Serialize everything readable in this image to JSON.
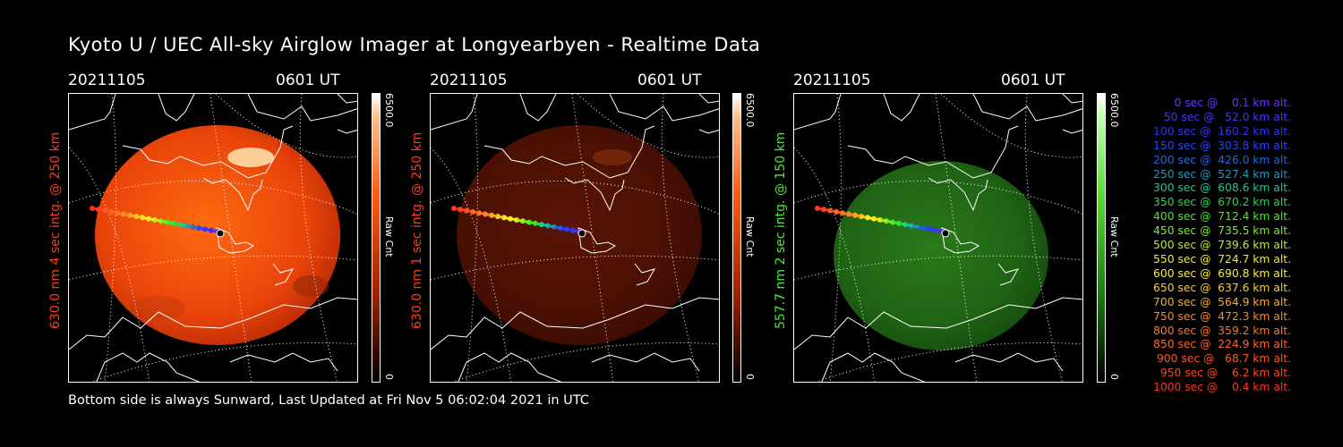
{
  "title": "Kyoto U / UEC All-sky Airglow Imager at Longyearbyen - Realtime Data",
  "footer": "Bottom side is always Sunward, Last Updated at Fri Nov  5 06:02:04 2021 in UTC",
  "panels": [
    {
      "date": "20211105",
      "time": "0601 UT",
      "label": "630.0 nm 4 sec intg. @ 250 km",
      "label_color": "#ff3b1f",
      "cbar_max": "6500.0",
      "cbar_min": "0",
      "cbar_unit": "Raw Cnt",
      "tone": "red-bright"
    },
    {
      "date": "20211105",
      "time": "0601 UT",
      "label": "630.0 nm 1 sec intg. @ 250 km",
      "label_color": "#ff3b1f",
      "cbar_max": "6500.0",
      "cbar_min": "0",
      "cbar_unit": "Raw Cnt",
      "tone": "red-dark"
    },
    {
      "date": "20211105",
      "time": "0601 UT",
      "label": "557.7 nm 2 sec intg. @ 150 km",
      "label_color": "#44ee33",
      "cbar_max": "6500.0",
      "cbar_min": "0",
      "cbar_unit": "Raw Cnt",
      "tone": "green"
    }
  ],
  "legend": [
    {
      "text": "   0 sec @    0.1 km alt.",
      "color": "#6633ff"
    },
    {
      "text": "  50 sec @   52.0 km alt.",
      "color": "#4433ff"
    },
    {
      "text": " 100 sec @  160.2 km alt.",
      "color": "#3333ff"
    },
    {
      "text": " 150 sec @  303.8 km alt.",
      "color": "#2244ff"
    },
    {
      "text": " 200 sec @  426.0 km alt.",
      "color": "#2266dd"
    },
    {
      "text": " 250 sec @  527.4 km alt.",
      "color": "#2299bb"
    },
    {
      "text": " 300 sec @  608.6 km alt.",
      "color": "#11cc99"
    },
    {
      "text": " 350 sec @  670.2 km alt.",
      "color": "#22dd44"
    },
    {
      "text": " 400 sec @  712.4 km alt.",
      "color": "#44ee22"
    },
    {
      "text": " 450 sec @  735.5 km alt.",
      "color": "#77ee22"
    },
    {
      "text": " 500 sec @  739.6 km alt.",
      "color": "#bbee22"
    },
    {
      "text": " 550 sec @  724.7 km alt.",
      "color": "#eeee22"
    },
    {
      "text": " 600 sec @  690.8 km alt.",
      "color": "#ffee22"
    },
    {
      "text": " 650 sec @  637.6 km alt.",
      "color": "#ffcc22"
    },
    {
      "text": " 700 sec @  564.9 km alt.",
      "color": "#ffaa22"
    },
    {
      "text": " 750 sec @  472.3 km alt.",
      "color": "#ff8822"
    },
    {
      "text": " 800 sec @  359.2 km alt.",
      "color": "#ff7722"
    },
    {
      "text": " 850 sec @  224.9 km alt.",
      "color": "#ff6622"
    },
    {
      "text": " 900 sec @   68.7 km alt.",
      "color": "#ff5522"
    },
    {
      "text": " 950 sec @    6.2 km alt.",
      "color": "#ff4422"
    },
    {
      "text": "1000 sec @    0.4 km alt.",
      "color": "#ff3322"
    }
  ]
}
